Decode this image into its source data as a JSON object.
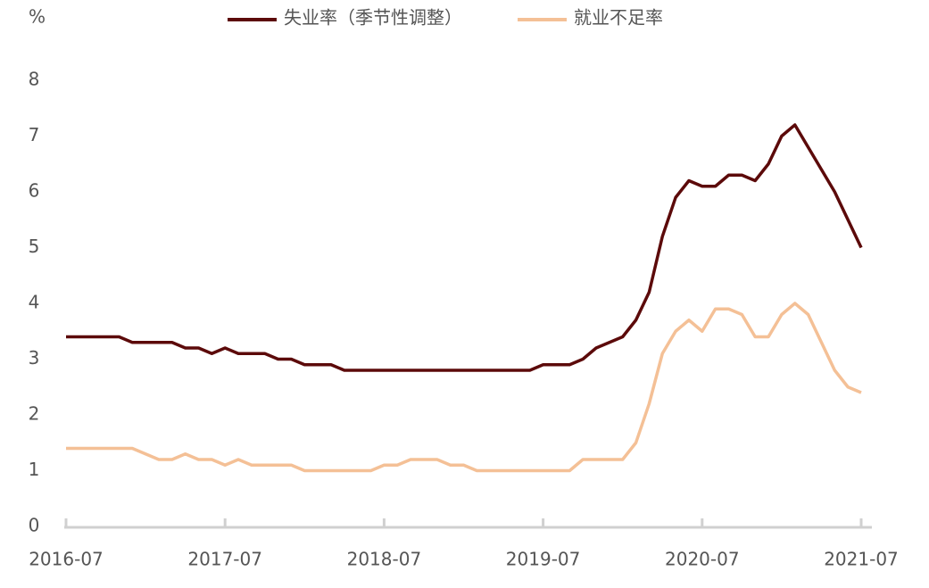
{
  "chart_data": {
    "type": "line",
    "ylabel": "%",
    "categories": [
      "2016-07",
      null,
      null,
      null,
      null,
      null,
      null,
      null,
      null,
      null,
      null,
      null,
      "2017-07",
      null,
      null,
      null,
      null,
      null,
      null,
      null,
      null,
      null,
      null,
      null,
      "2018-07",
      null,
      null,
      null,
      null,
      null,
      null,
      null,
      null,
      null,
      null,
      null,
      "2019-07",
      null,
      null,
      null,
      null,
      null,
      null,
      null,
      null,
      null,
      null,
      null,
      "2020-07",
      null,
      null,
      null,
      null,
      null,
      null,
      null,
      null,
      null,
      null,
      null,
      "2021-07"
    ],
    "series": [
      {
        "name": "失业率（季节性调整）",
        "color": "#5c0a0a",
        "values": [
          3.4,
          3.4,
          3.4,
          3.4,
          3.4,
          3.3,
          3.3,
          3.3,
          3.3,
          3.2,
          3.2,
          3.1,
          3.2,
          3.1,
          3.1,
          3.1,
          3.0,
          3.0,
          2.9,
          2.9,
          2.9,
          2.8,
          2.8,
          2.8,
          2.8,
          2.8,
          2.8,
          2.8,
          2.8,
          2.8,
          2.8,
          2.8,
          2.8,
          2.8,
          2.8,
          2.8,
          2.9,
          2.9,
          2.9,
          3.0,
          3.2,
          3.3,
          3.4,
          3.7,
          4.2,
          5.2,
          5.9,
          6.2,
          6.1,
          6.1,
          6.3,
          6.3,
          6.2,
          6.5,
          7.0,
          7.2,
          6.8,
          6.4,
          6.0,
          5.5,
          5.0
        ]
      },
      {
        "name": "就业不足率",
        "color": "#f4c096",
        "values": [
          1.4,
          1.4,
          1.4,
          1.4,
          1.4,
          1.4,
          1.3,
          1.2,
          1.2,
          1.3,
          1.2,
          1.2,
          1.1,
          1.2,
          1.1,
          1.1,
          1.1,
          1.1,
          1.0,
          1.0,
          1.0,
          1.0,
          1.0,
          1.0,
          1.1,
          1.1,
          1.2,
          1.2,
          1.2,
          1.1,
          1.1,
          1.0,
          1.0,
          1.0,
          1.0,
          1.0,
          1.0,
          1.0,
          1.0,
          1.2,
          1.2,
          1.2,
          1.2,
          1.5,
          2.2,
          3.1,
          3.5,
          3.7,
          3.5,
          3.9,
          3.9,
          3.8,
          3.4,
          3.4,
          3.8,
          4.0,
          3.8,
          3.3,
          2.8,
          2.5,
          2.4
        ]
      }
    ],
    "ylim": [
      0,
      8
    ],
    "yticks": [
      0,
      1,
      2,
      3,
      4,
      5,
      6,
      7,
      8
    ],
    "grid": false,
    "legend": "top"
  }
}
